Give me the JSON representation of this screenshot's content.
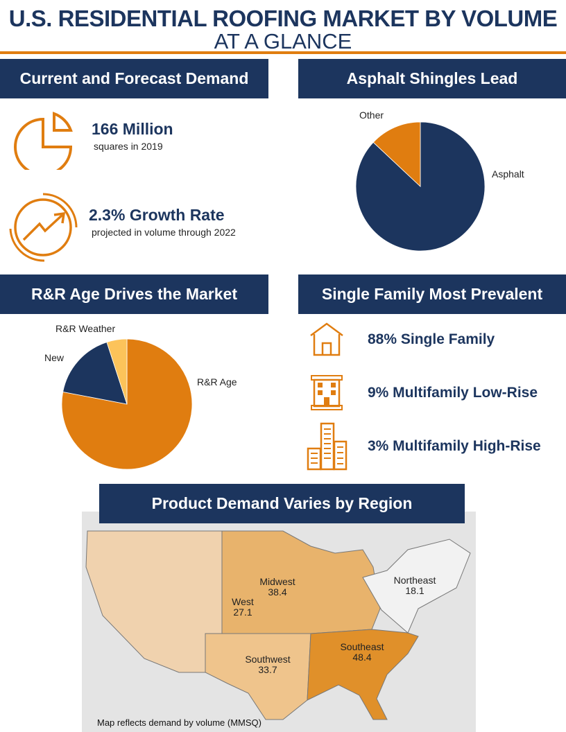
{
  "title": "U.S. RESIDENTIAL ROOFING MARKET BY VOLUME",
  "subtitle": "AT A GLANCE",
  "colors": {
    "navy": "#1c355e",
    "orange": "#e07d10",
    "light_orange": "#fcc35a"
  },
  "sections": {
    "demand": {
      "header": "Current and Forecast Demand",
      "stat1": "166 Million",
      "stat1_sub": "squares in 2019",
      "stat2": "2.3% Growth Rate",
      "stat2_sub": "projected in volume through 2022",
      "icons": [
        "pie-chart-icon",
        "growth-chart-icon"
      ]
    },
    "shingles": {
      "header": "Asphalt Shingles Lead"
    },
    "rr": {
      "header": "R&R Age Drives the Market"
    },
    "family": {
      "header": "Single Family Most Prevalent",
      "items": [
        {
          "label": "88% Single Family",
          "icon": "house-icon"
        },
        {
          "label": "9% Multifamily Low-Rise",
          "icon": "apartment-icon"
        },
        {
          "label": "3% Multifamily High-Rise",
          "icon": "high-rise-icon"
        }
      ]
    },
    "region": {
      "header": "Product Demand Varies by Region",
      "note": "Map reflects demand by volume (MMSQ)"
    }
  },
  "chart_data": [
    {
      "type": "pie",
      "categories": [
        "Asphalt",
        "Other"
      ],
      "values": [
        87,
        13
      ],
      "colors": [
        "#1c355e",
        "#e07d10"
      ]
    },
    {
      "type": "pie",
      "categories": [
        "R&R Age",
        "New",
        "R&R Weather"
      ],
      "values": [
        78,
        17,
        5
      ],
      "colors": [
        "#e07d10",
        "#1c355e",
        "#fcc35a"
      ]
    },
    {
      "type": "map",
      "regions": [
        {
          "name": "West",
          "value": "27.1",
          "color": "#f0d2ae"
        },
        {
          "name": "Midwest",
          "value": "38.4",
          "color": "#e8b36c"
        },
        {
          "name": "Northeast",
          "value": "18.1",
          "color": "#f2f2f2"
        },
        {
          "name": "Southwest",
          "value": "33.7",
          "color": "#efc48c"
        },
        {
          "name": "Southeast",
          "value": "48.4",
          "color": "#e0902a"
        }
      ]
    }
  ]
}
